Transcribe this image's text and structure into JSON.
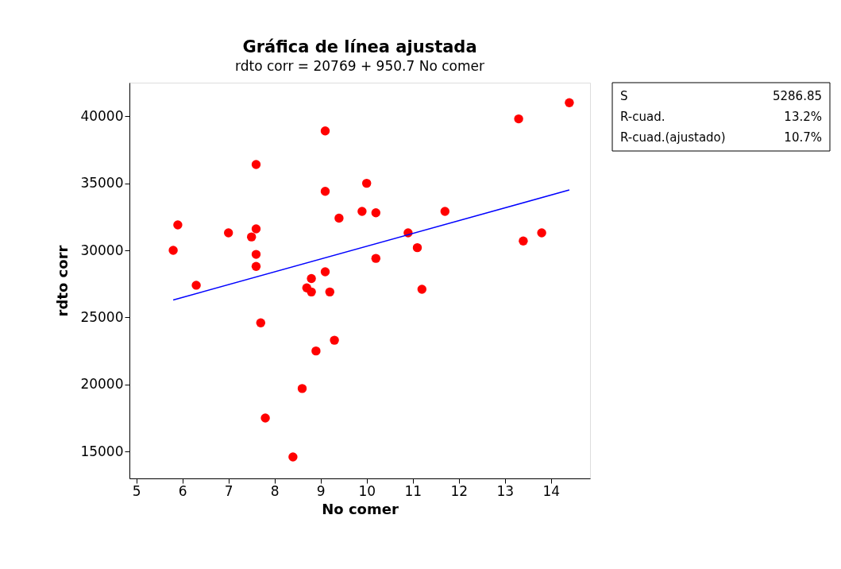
{
  "chart_data": {
    "type": "scatter",
    "title": "Gráfica de línea ajustada",
    "subtitle": "rdto corr =  20769 + 950.7 No comer",
    "xlabel": "No comer",
    "ylabel": "rdto corr",
    "xlim": [
      4.85,
      14.85
    ],
    "ylim": [
      13000,
      42500
    ],
    "xticks": [
      5,
      6,
      7,
      8,
      9,
      10,
      11,
      12,
      13,
      14
    ],
    "yticks": [
      15000,
      20000,
      25000,
      30000,
      35000,
      40000
    ],
    "grid": false,
    "series": [
      {
        "marker": "circle",
        "color": "#ff0000",
        "x": [
          9.1,
          7.6,
          9.1,
          9.4,
          9.9,
          5.9,
          7.0,
          7.6,
          7.5,
          5.8,
          7.6,
          7.6,
          9.1,
          8.8,
          6.3,
          8.7,
          8.8,
          9.2,
          7.7,
          9.3,
          8.9,
          8.6,
          7.8,
          8.4,
          14.4,
          13.3,
          10.0,
          10.2,
          11.7,
          10.9,
          13.8,
          13.4,
          11.1,
          10.2,
          11.2
        ],
        "values": [
          38900,
          36400,
          34400,
          32400,
          32900,
          31900,
          31300,
          31600,
          31000,
          30000,
          29700,
          28800,
          28400,
          27900,
          27400,
          27200,
          26900,
          26900,
          24600,
          23300,
          22500,
          19700,
          17500,
          14600,
          41000,
          39800,
          35000,
          32800,
          32900,
          31300,
          31300,
          30700,
          30200,
          29400,
          27100
        ]
      },
      {
        "type": "line",
        "marker": "none",
        "color": "#0000ff",
        "x": [
          5.8,
          14.4
        ],
        "values": [
          26300,
          34500
        ]
      }
    ],
    "annotations": [
      "S",
      "5286.85",
      "R-cuad.",
      "13.2%",
      "R-cuad.(ajustado)",
      "10.7%"
    ]
  }
}
